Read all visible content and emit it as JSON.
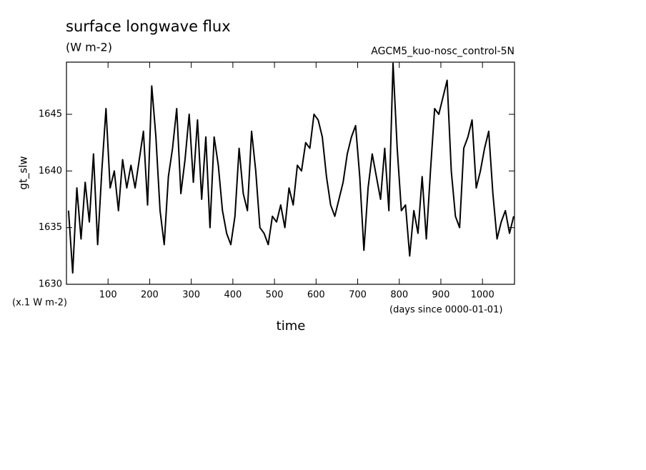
{
  "chart_data": {
    "type": "line",
    "title": "surface longwave flux",
    "subtitle": "(W m-2)",
    "annotation": "AGCM5_kuo-nosc_control-5N",
    "y_label": "gt_slw",
    "y_unit": "(x.1 W m-2)",
    "x_label": "time",
    "x_unit": "(days since 0000-01-01)",
    "xlim": [
      0,
      1077
    ],
    "ylim": [
      1630,
      1649.6
    ],
    "xticks": [
      100,
      200,
      300,
      400,
      500,
      600,
      700,
      800,
      900,
      1000
    ],
    "yticks": [
      1630,
      1635,
      1640,
      1645
    ],
    "x": [
      5,
      15,
      25,
      35,
      45,
      55,
      65,
      75,
      85,
      95,
      105,
      115,
      125,
      135,
      145,
      155,
      165,
      175,
      185,
      195,
      205,
      215,
      225,
      235,
      245,
      255,
      265,
      275,
      285,
      295,
      305,
      315,
      325,
      335,
      345,
      355,
      365,
      375,
      385,
      395,
      405,
      415,
      425,
      435,
      445,
      455,
      465,
      475,
      485,
      495,
      505,
      515,
      525,
      535,
      545,
      555,
      565,
      575,
      585,
      595,
      605,
      615,
      625,
      635,
      645,
      655,
      665,
      675,
      685,
      695,
      705,
      715,
      725,
      735,
      745,
      755,
      765,
      775,
      785,
      795,
      805,
      815,
      825,
      835,
      845,
      855,
      865,
      875,
      885,
      895,
      905,
      915,
      925,
      935,
      945,
      955,
      965,
      975,
      985,
      995,
      1005,
      1015,
      1025,
      1035,
      1045,
      1055,
      1065,
      1075
    ],
    "series": [
      {
        "name": "gt_slw",
        "color": "#000000",
        "values": [
          1636.5,
          1631,
          1638.5,
          1634,
          1639,
          1635.5,
          1641.5,
          1633.5,
          1640,
          1645.5,
          1638.5,
          1640,
          1636.5,
          1641,
          1638.5,
          1640.5,
          1638.5,
          1641,
          1643.5,
          1637,
          1647.5,
          1643,
          1636.5,
          1633.5,
          1639.5,
          1642,
          1645.5,
          1638,
          1641,
          1645,
          1639,
          1644.5,
          1637.5,
          1643,
          1635,
          1643,
          1640.5,
          1636.5,
          1634.5,
          1633.5,
          1636,
          1642,
          1638,
          1636.5,
          1643.5,
          1640,
          1635,
          1634.5,
          1633.5,
          1636,
          1635.5,
          1637,
          1635,
          1638.5,
          1637,
          1640.5,
          1640,
          1642.5,
          1642,
          1645,
          1644.5,
          1643,
          1639.5,
          1637,
          1636,
          1637.5,
          1639,
          1641.5,
          1643,
          1644,
          1639.5,
          1633,
          1638.5,
          1641.5,
          1639.5,
          1637.5,
          1642,
          1636.5,
          1649.5,
          1642,
          1636.5,
          1637,
          1632.5,
          1636.5,
          1634.5,
          1639.5,
          1634,
          1640,
          1645.5,
          1645,
          1646.5,
          1648,
          1640,
          1636,
          1635,
          1642,
          1643,
          1644.5,
          1638.5,
          1640,
          1642,
          1643.5,
          1638,
          1634,
          1635.5,
          1636.5,
          1634.5,
          1636
        ]
      }
    ]
  }
}
